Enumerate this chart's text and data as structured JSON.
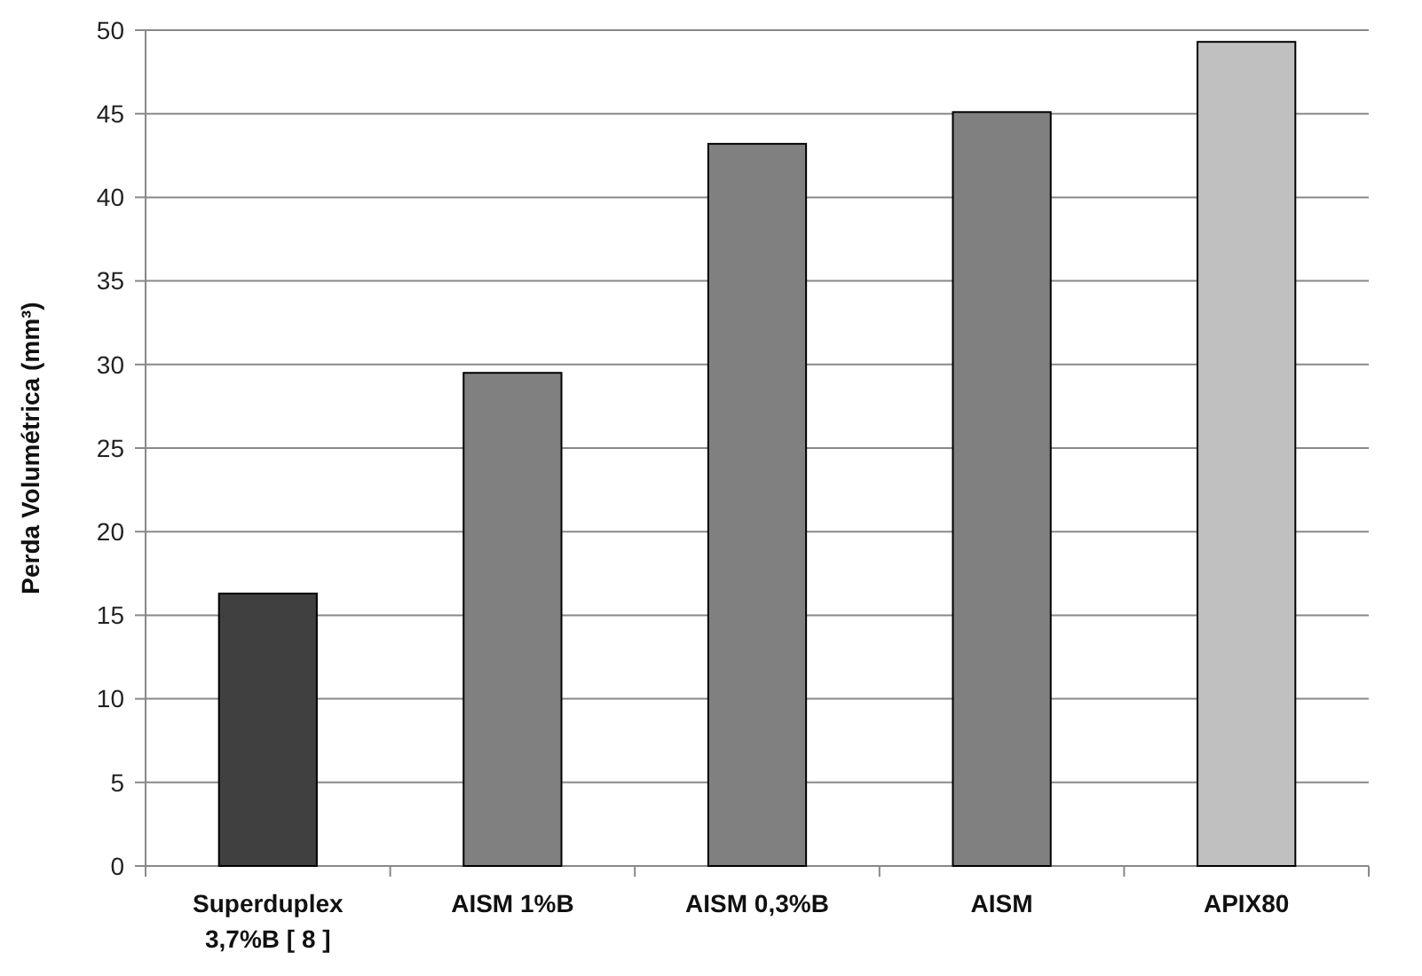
{
  "chart_data": {
    "type": "bar",
    "ylabel": "Perda Volumétrica (mm³)",
    "categories": [
      "Superduplex\n3,7%B [  8  ]",
      "AISM 1%B",
      "AISM 0,3%B",
      "AISM",
      "APIX80"
    ],
    "values": [
      16.3,
      29.5,
      43.2,
      45.1,
      49.3
    ],
    "colors": [
      "#404040",
      "#808080",
      "#808080",
      "#808080",
      "#c0c0c0"
    ],
    "ylim": [
      0,
      50
    ],
    "yticks": [
      0,
      5,
      10,
      15,
      20,
      25,
      30,
      35,
      40,
      45,
      50
    ],
    "grid": "y"
  }
}
